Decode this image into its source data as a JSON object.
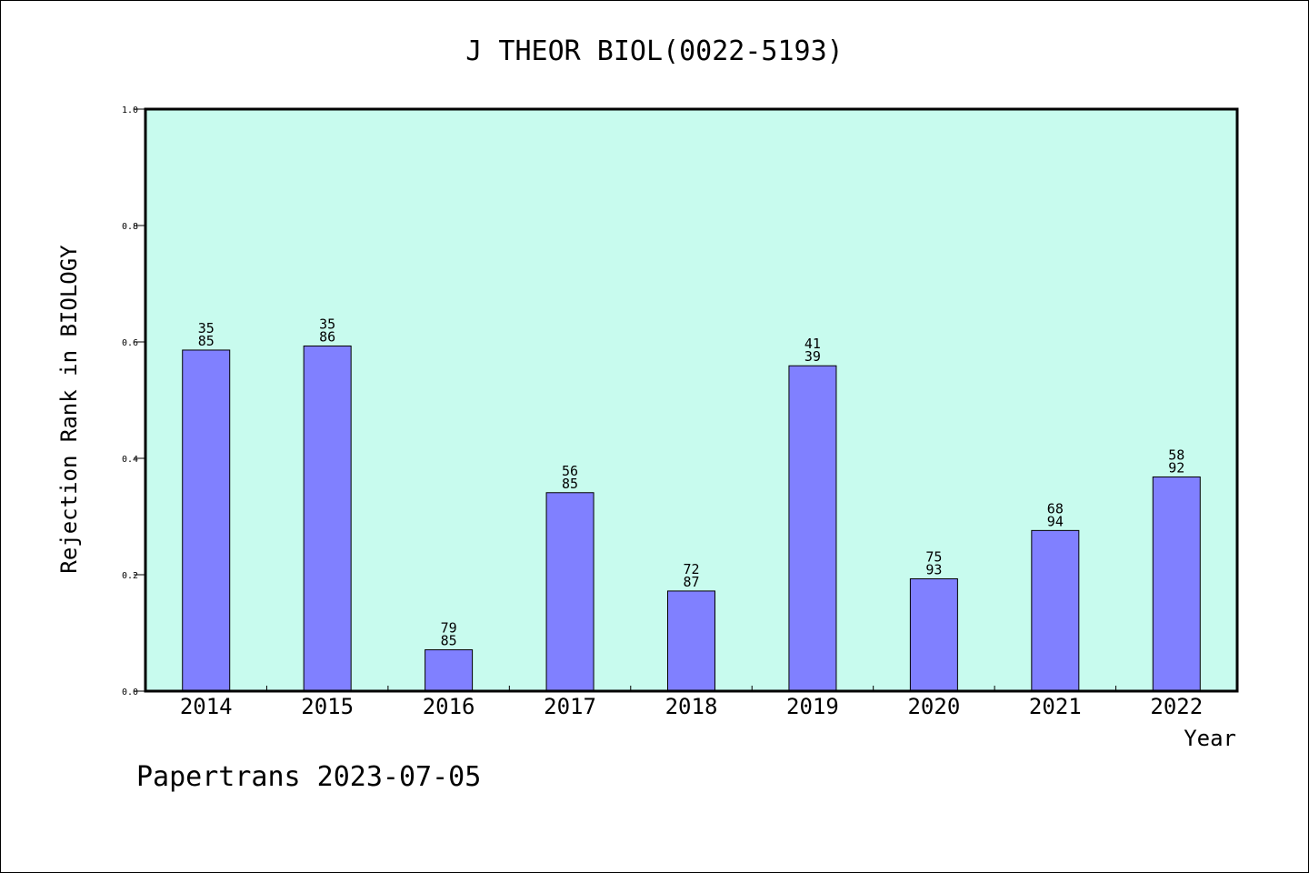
{
  "chart_data": {
    "type": "bar",
    "title": "J THEOR BIOL(0022-5193)",
    "xlabel": "Year",
    "ylabel": "Rejection Rank in BIOLOGY",
    "categories": [
      "2014",
      "2015",
      "2016",
      "2017",
      "2018",
      "2019",
      "2020",
      "2021",
      "2022"
    ],
    "values": [
      0.586,
      0.593,
      0.071,
      0.341,
      0.172,
      0.559,
      0.193,
      0.276,
      0.368
    ],
    "bar_labels": [
      [
        "35",
        "85"
      ],
      [
        "35",
        "86"
      ],
      [
        "79",
        "85"
      ],
      [
        "56",
        "85"
      ],
      [
        "72",
        "87"
      ],
      [
        "41",
        "39"
      ],
      [
        "75",
        "93"
      ],
      [
        "68",
        "94"
      ],
      [
        "58",
        "92"
      ]
    ],
    "ylim": [
      0,
      1.0
    ],
    "yticks": [
      "0.0",
      "0.2",
      "0.4",
      "0.6",
      "0.8",
      "1.0"
    ],
    "grid": false,
    "colors": {
      "plot_background": "#c8fbee",
      "bar_fill": "#8080ff",
      "bar_stroke": "#000000"
    }
  },
  "footer": "Papertrans 2023-07-05"
}
